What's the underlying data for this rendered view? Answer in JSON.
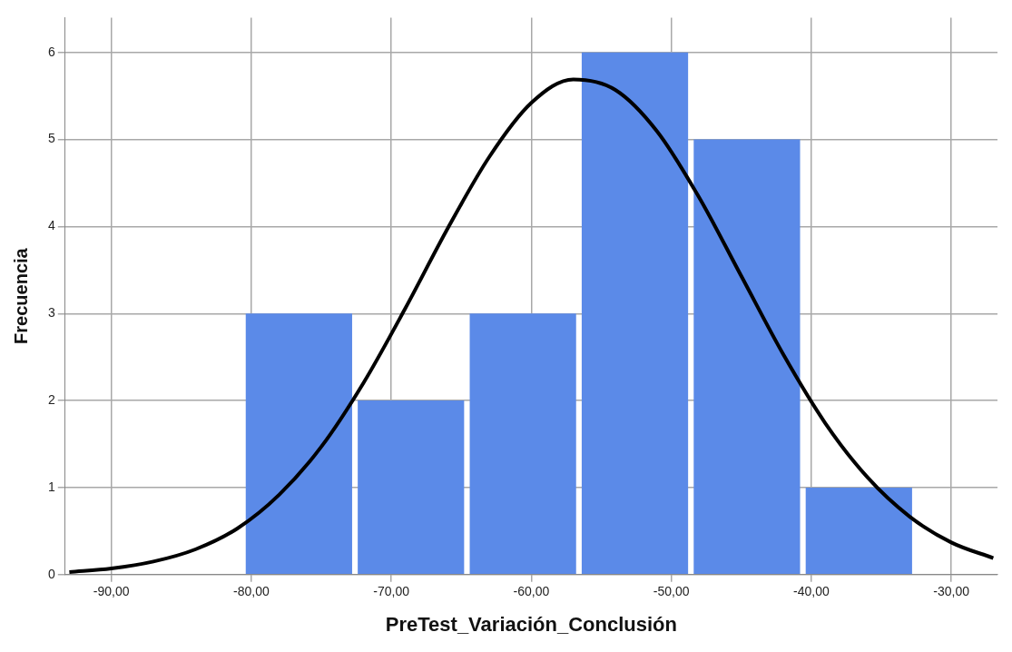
{
  "chart_data": {
    "type": "histogram",
    "xlabel": "PreTest_Variación_Conclusión",
    "ylabel": "Frecuencia",
    "bins": [
      -80.6,
      -72.6,
      -64.6,
      -56.6,
      -48.6,
      -40.6,
      -32.6
    ],
    "values": [
      3,
      2,
      3,
      6,
      5,
      1
    ],
    "color": "#5b8ae8",
    "series": [
      {
        "type": "line",
        "color": "#000000",
        "x": [
          -93,
          -90,
          -87,
          -84,
          -81,
          -78,
          -75,
          -72,
          -69,
          -66,
          -63,
          -60,
          -57,
          -54,
          -51,
          -48,
          -45,
          -42,
          -39,
          -36,
          -33,
          -30,
          -27
        ],
        "values": [
          0.03,
          0.07,
          0.15,
          0.29,
          0.53,
          0.92,
          1.47,
          2.2,
          3.06,
          3.97,
          4.8,
          5.42,
          5.69,
          5.57,
          5.09,
          4.33,
          3.43,
          2.53,
          1.74,
          1.12,
          0.67,
          0.37,
          0.19
        ]
      }
    ],
    "xlim": [
      -93.3,
      -26.7
    ],
    "xticks": [
      {
        "value": -90,
        "label": "-90,00"
      },
      {
        "value": -80,
        "label": "-80,00"
      },
      {
        "value": -70,
        "label": "-70,00"
      },
      {
        "value": -60,
        "label": "-60,00"
      },
      {
        "value": -50,
        "label": "-50,00"
      },
      {
        "value": -40,
        "label": "-40,00"
      },
      {
        "value": -30,
        "label": "-30,00"
      }
    ],
    "ylim": [
      0,
      6.4
    ],
    "yticks": [
      0,
      1,
      2,
      3,
      4,
      5,
      6
    ],
    "grid": true,
    "legend": false,
    "marker": "none"
  }
}
